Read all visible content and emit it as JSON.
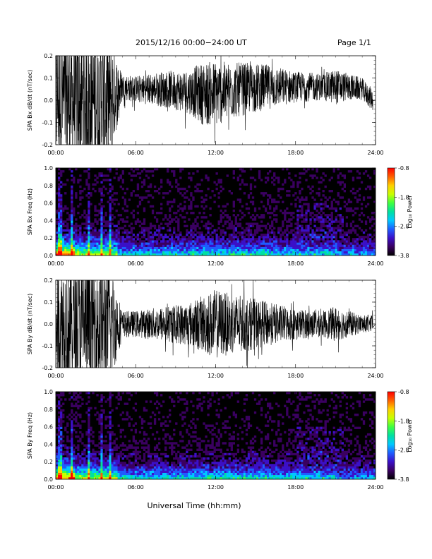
{
  "header": {
    "title": "2015/12/16  00:00−24:00 UT",
    "page": "Page 1/1"
  },
  "xaxis": {
    "label": "Universal Time (hh:mm)",
    "ticks": [
      "00:00",
      "06:00",
      "12:00",
      "18:00",
      "24:00"
    ],
    "range_hours": [
      0,
      24
    ]
  },
  "colorbar": {
    "label": "Log₁₀ Power",
    "ticks": [
      "-0.8",
      "-1.8",
      "-2.8",
      "-3.8"
    ],
    "range": [
      -3.8,
      -0.8
    ],
    "colors": [
      "#000000",
      "#3a0060",
      "#3b10c8",
      "#1f5cff",
      "#00c8ff",
      "#00e0a0",
      "#40ff40",
      "#c8ff00",
      "#ffd000",
      "#ff6000",
      "#ff0000"
    ]
  },
  "chart_data": [
    {
      "type": "line",
      "panel": "bx-timeseries",
      "ylabel": "SPA Bx dB/dt (nT/sec)",
      "ylim": [
        -0.2,
        0.2
      ],
      "yticks": [
        "0.2",
        "0.1",
        "0.0",
        "-0.1",
        "-0.2"
      ],
      "envelope_hours": [
        0,
        1,
        2,
        3,
        4,
        5,
        6,
        8,
        10,
        11,
        12,
        13,
        14,
        16,
        18,
        20,
        21,
        22,
        23,
        23.8
      ],
      "envelope_amplitude": [
        0.3,
        0.3,
        0.3,
        0.3,
        0.3,
        0.06,
        0.06,
        0.08,
        0.1,
        0.14,
        0.15,
        0.13,
        0.12,
        0.1,
        0.07,
        0.06,
        0.08,
        0.06,
        0.05,
        0.05
      ],
      "envelope_offset": [
        0.0,
        0.0,
        0.0,
        0.0,
        0.0,
        0.06,
        0.05,
        0.05,
        0.04,
        0.03,
        0.03,
        0.04,
        0.05,
        0.06,
        0.06,
        0.06,
        0.06,
        0.06,
        0.05,
        0.0
      ]
    },
    {
      "type": "heatmap",
      "panel": "bx-spectrogram",
      "ylabel": "SPA Bx Freq (Hz)",
      "ylim": [
        0.0,
        1.0
      ],
      "yticks": [
        "1.0",
        "0.8",
        "0.6",
        "0.4",
        "0.2",
        "0.0"
      ]
    },
    {
      "type": "line",
      "panel": "by-timeseries",
      "ylabel": "SPA By dB/dt (nT/sec)",
      "ylim": [
        -0.2,
        0.2
      ],
      "yticks": [
        "0.2",
        "0.1",
        "0.0",
        "-0.1",
        "-0.2"
      ],
      "envelope_hours": [
        0,
        1,
        2,
        3,
        4,
        5,
        6,
        8,
        10,
        11,
        12,
        13,
        14,
        16,
        18,
        20,
        21,
        22,
        23,
        23.8
      ],
      "envelope_amplitude": [
        0.3,
        0.3,
        0.3,
        0.3,
        0.3,
        0.06,
        0.06,
        0.08,
        0.1,
        0.13,
        0.16,
        0.14,
        0.13,
        0.1,
        0.07,
        0.06,
        0.08,
        0.06,
        0.04,
        0.04
      ],
      "envelope_offset": [
        0.0,
        0.0,
        0.0,
        0.0,
        0.0,
        0.0,
        0.0,
        0.0,
        0.0,
        0.0,
        0.0,
        0.0,
        0.0,
        0.0,
        0.0,
        0.0,
        0.0,
        0.0,
        0.0,
        0.0
      ]
    },
    {
      "type": "heatmap",
      "panel": "by-spectrogram",
      "ylabel": "SPA By Freq (Hz)",
      "ylim": [
        0.0,
        1.0
      ],
      "yticks": [
        "1.0",
        "0.8",
        "0.6",
        "0.4",
        "0.2",
        "0.0"
      ]
    }
  ]
}
